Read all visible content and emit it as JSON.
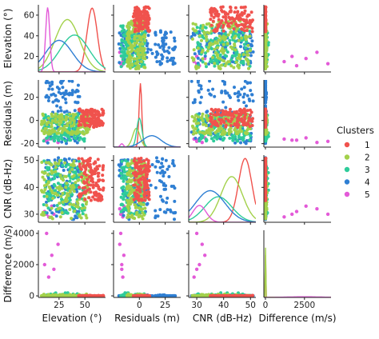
{
  "chart_data": {
    "type": "scatter",
    "kind": "pairplot",
    "variables": [
      {
        "key": "elev",
        "label": "Elevation (°)",
        "ylim": [
          5,
          70
        ],
        "xlim": [
          5,
          70
        ],
        "yticks": [
          20,
          40,
          60
        ],
        "xticks": [
          25,
          50
        ]
      },
      {
        "key": "res",
        "label": "Residuals (m)",
        "ylim": [
          -23,
          35
        ],
        "xlim": [
          -25,
          40
        ],
        "yticks": [
          -20,
          0,
          20
        ],
        "xticks": [
          0,
          25
        ]
      },
      {
        "key": "cnr",
        "label": "CNR (dB-Hz)",
        "ylim": [
          27,
          52
        ],
        "xlim": [
          27,
          52
        ],
        "yticks": [
          30,
          40,
          50
        ],
        "xticks": [
          30,
          40,
          50
        ]
      },
      {
        "key": "diff",
        "label": "Difference (m/s)",
        "ylim": [
          -100,
          4200
        ],
        "xlim": [
          -100,
          4200
        ],
        "yticks": [
          0,
          2000,
          4000
        ],
        "xticks": [
          0,
          2500
        ]
      }
    ],
    "legend": {
      "title": "Clusters",
      "placement": "right",
      "entries": [
        {
          "label": "1",
          "color": "#f0524d"
        },
        {
          "label": "2",
          "color": "#a3d14b"
        },
        {
          "label": "3",
          "color": "#2ecc9a"
        },
        {
          "label": "4",
          "color": "#2f7fd3"
        },
        {
          "label": "5",
          "color": "#e35ad8"
        }
      ]
    },
    "clusters": [
      {
        "label": "1",
        "elev": [
          44,
          68
        ],
        "res": [
          -6,
          10
        ],
        "cnr": [
          35,
          51
        ],
        "diff": [
          0,
          30
        ]
      },
      {
        "label": "2",
        "elev": [
          8,
          55
        ],
        "res": [
          -12,
          6
        ],
        "cnr": [
          28,
          50
        ],
        "diff": [
          0,
          120
        ]
      },
      {
        "label": "3",
        "elev": [
          10,
          50
        ],
        "res": [
          -18,
          6
        ],
        "cnr": [
          30,
          50
        ],
        "diff": [
          0,
          200
        ]
      },
      {
        "label": "4",
        "elev": [
          12,
          45
        ],
        "res": [
          -20,
          35
        ],
        "cnr": [
          28,
          51
        ],
        "diff": [
          0,
          60
        ]
      },
      {
        "label": "5",
        "elev": [
          10,
          30
        ],
        "res": [
          -20,
          -14
        ],
        "cnr": [
          28,
          34
        ],
        "diff": [
          0,
          4000
        ],
        "points": [
          {
            "elev": 13,
            "res": -18,
            "cnr": 30,
            "diff": 4000
          },
          {
            "elev": 11,
            "res": -17,
            "cnr": 31,
            "diff": 2000
          },
          {
            "elev": 15,
            "res": -16,
            "cnr": 29,
            "diff": 1200
          },
          {
            "elev": 24,
            "res": -19,
            "cnr": 32,
            "diff": 3300
          },
          {
            "elev": 18,
            "res": -15,
            "cnr": 33,
            "diff": 2600
          },
          {
            "elev": 20,
            "res": -17,
            "cnr": 30,
            "diff": 1700
          }
        ]
      }
    ],
    "kde": {
      "elev": [
        {
          "cluster": "1",
          "mean": 57,
          "sd": 5,
          "peak": 0.95
        },
        {
          "cluster": "2",
          "mean": 33,
          "sd": 12,
          "peak": 0.78
        },
        {
          "cluster": "3",
          "mean": 40,
          "sd": 14,
          "peak": 0.55
        },
        {
          "cluster": "4",
          "mean": 25,
          "sd": 13,
          "peak": 0.47
        },
        {
          "cluster": "5",
          "mean": 14,
          "sd": 2,
          "peak": 0.96
        }
      ],
      "res": [
        {
          "cluster": "1",
          "mean": 1,
          "sd": 1.3,
          "peak": 0.95
        },
        {
          "cluster": "2",
          "mean": -3,
          "sd": 3.5,
          "peak": 0.28
        },
        {
          "cluster": "3",
          "mean": 0,
          "sd": 2.5,
          "peak": 0.43
        },
        {
          "cluster": "4",
          "mean": 12,
          "sd": 9,
          "peak": 0.17
        },
        {
          "cluster": "5",
          "mean": -17,
          "sd": 1.5,
          "peak": 0.05
        }
      ],
      "cnr": [
        {
          "cluster": "1",
          "mean": 48,
          "sd": 2.5,
          "peak": 0.95
        },
        {
          "cluster": "2",
          "mean": 43,
          "sd": 4,
          "peak": 0.68
        },
        {
          "cluster": "3",
          "mean": 38,
          "sd": 5,
          "peak": 0.38
        },
        {
          "cluster": "4",
          "mean": 35,
          "sd": 5.5,
          "peak": 0.47
        },
        {
          "cluster": "5",
          "mean": 31,
          "sd": 2.5,
          "peak": 0.25
        }
      ],
      "diff": [
        {
          "cluster": "1",
          "mean": 0,
          "sd": 8,
          "peak": 0.98
        },
        {
          "cluster": "2",
          "mean": 0,
          "sd": 12,
          "peak": 0.9
        },
        {
          "cluster": "5",
          "mean": 2500,
          "sd": 1000,
          "peak": 0.01
        }
      ]
    }
  }
}
